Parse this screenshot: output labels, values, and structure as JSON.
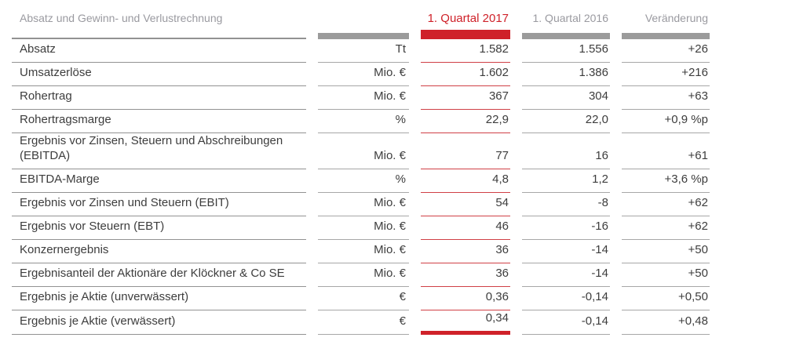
{
  "table": {
    "title": "Absatz und Gewinn- und Verlustrechnung",
    "columns": {
      "q2017": "1. Quartal 2017",
      "q2016": "1. Quartal 2016",
      "change": "Veränderung"
    },
    "rows": [
      {
        "label": "Absatz",
        "unit": "Tt",
        "q2017": "1.582",
        "q2016": "1.556",
        "change": "+26"
      },
      {
        "label": "Umsatzerlöse",
        "unit": "Mio. €",
        "q2017": "1.602",
        "q2016": "1.386",
        "change": "+216"
      },
      {
        "label": "Rohertrag",
        "unit": "Mio. €",
        "q2017": "367",
        "q2016": "304",
        "change": "+63"
      },
      {
        "label": "Rohertragsmarge",
        "unit": "%",
        "q2017": "22,9",
        "q2016": "22,0",
        "change": "+0,9 %p"
      },
      {
        "label": "Ergebnis vor Zinsen, Steuern und Abschreibungen (EBITDA)",
        "unit": "Mio. €",
        "q2017": "77",
        "q2016": "16",
        "change": "+61"
      },
      {
        "label": "EBITDA-Marge",
        "unit": "%",
        "q2017": "4,8",
        "q2016": "1,2",
        "change": "+3,6 %p"
      },
      {
        "label": "Ergebnis vor Zinsen und Steuern (EBIT)",
        "unit": "Mio. €",
        "q2017": "54",
        "q2016": "-8",
        "change": "+62"
      },
      {
        "label": "Ergebnis vor Steuern (EBT)",
        "unit": "Mio. €",
        "q2017": "46",
        "q2016": "-16",
        "change": "+62"
      },
      {
        "label": "Konzernergebnis",
        "unit": "Mio. €",
        "q2017": "36",
        "q2016": "-14",
        "change": "+50"
      },
      {
        "label": "Ergebnisanteil der Aktionäre der Klöckner & Co SE",
        "unit": "Mio. €",
        "q2017": "36",
        "q2016": "-14",
        "change": "+50"
      },
      {
        "label": "Ergebnis je Aktie (unverwässert)",
        "unit": "€",
        "q2017": "0,36",
        "q2016": "-0,14",
        "change": "+0,50"
      },
      {
        "label": "Ergebnis je Aktie (verwässert)",
        "unit": "€",
        "q2017": "0,34",
        "q2016": "-0,14",
        "change": "+0,48"
      }
    ]
  },
  "colors": {
    "accent_red": "#cf2129",
    "red_rule": "#d04046",
    "bar_gray": "#9b9b9b",
    "gray_rule": "#a7a7a7",
    "label_rule": "#929292",
    "header_text_gray": "#9a9aa0",
    "body_text": "#3d3d3d"
  }
}
